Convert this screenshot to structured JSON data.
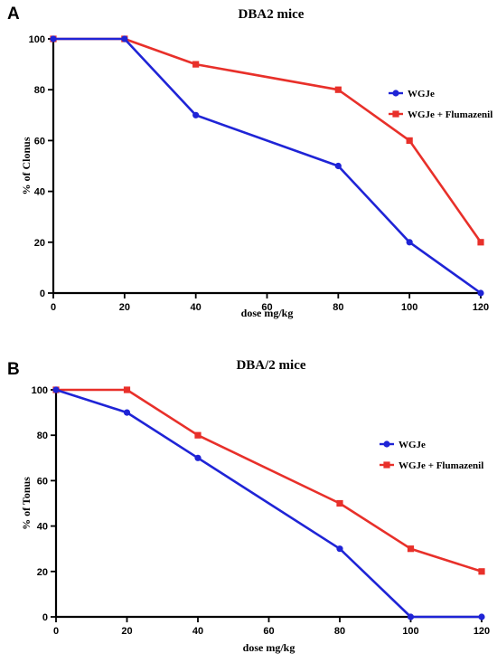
{
  "chart_data": [
    {
      "type": "line",
      "panel_label": "A",
      "title": "DBA2 mice",
      "xlabel": "dose mg/kg",
      "ylabel": "% of Clonus",
      "x": [
        0,
        20,
        40,
        80,
        100,
        120
      ],
      "xticks": [
        "0",
        "20",
        "40",
        "60",
        "80",
        "100",
        "120"
      ],
      "yticks": [
        "0",
        "20",
        "40",
        "60",
        "80",
        "100"
      ],
      "xlim": [
        0,
        120
      ],
      "ylim": [
        0,
        100
      ],
      "grid": false,
      "legend_position": "right",
      "series": [
        {
          "name": "WGJe",
          "color": "#1f24d6",
          "marker": "circle",
          "values": [
            100,
            100,
            70,
            50,
            20,
            0
          ]
        },
        {
          "name": "WGJe + Flumazenil",
          "color": "#e8302a",
          "marker": "square",
          "values": [
            100,
            100,
            90,
            80,
            60,
            20
          ]
        }
      ]
    },
    {
      "type": "line",
      "panel_label": "B",
      "title": "DBA/2 mice",
      "xlabel": "dose mg/kg",
      "ylabel": "% of Tonus",
      "x": [
        0,
        20,
        40,
        80,
        100,
        120
      ],
      "xticks": [
        "0",
        "20",
        "40",
        "60",
        "80",
        "100",
        "120"
      ],
      "yticks": [
        "0",
        "20",
        "40",
        "60",
        "80",
        "100"
      ],
      "xlim": [
        0,
        120
      ],
      "ylim": [
        0,
        100
      ],
      "grid": false,
      "legend_position": "right",
      "series": [
        {
          "name": "WGJe",
          "color": "#1f24d6",
          "marker": "circle",
          "values": [
            100,
            90,
            70,
            30,
            0,
            0
          ]
        },
        {
          "name": "WGJe + Flumazenil",
          "color": "#e8302a",
          "marker": "square",
          "values": [
            100,
            100,
            80,
            50,
            30,
            20
          ]
        }
      ]
    }
  ]
}
